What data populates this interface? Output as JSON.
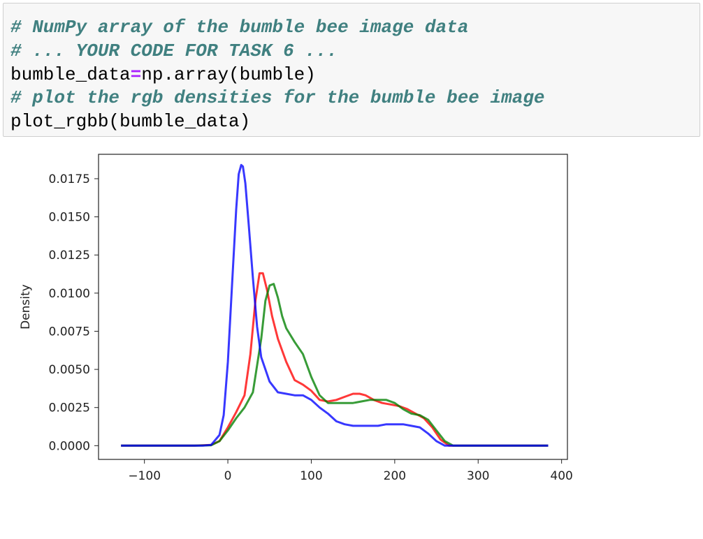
{
  "code_cell": {
    "line1": "# NumPy array of the bumble bee image data",
    "line2": "# ... YOUR CODE FOR TASK 6 ...",
    "line3": {
      "var": "bumble_data",
      "op": "=",
      "call": "np.array(bumble)"
    },
    "line4": "# plot the rgb densities for the bumble bee image",
    "line5": "plot_rgbb(bumble_data)"
  },
  "chart_data": {
    "type": "line",
    "ylabel": "Density",
    "xlabel": "",
    "title": "",
    "xlim": [
      -155,
      407
    ],
    "ylim": [
      -0.0009,
      0.0191
    ],
    "x_ticks": [
      -100,
      0,
      100,
      200,
      300,
      400
    ],
    "x_tick_labels": [
      "−100",
      "0",
      "100",
      "200",
      "300",
      "400"
    ],
    "y_ticks": [
      0.0,
      0.0025,
      0.005,
      0.0075,
      0.01,
      0.0125,
      0.015,
      0.0175
    ],
    "y_tick_labels": [
      "0.0000",
      "0.0025",
      "0.0050",
      "0.0075",
      "0.0100",
      "0.0125",
      "0.0150",
      "0.0175"
    ],
    "grid": false,
    "series": [
      {
        "color": "#ff0000",
        "x": [
          -128,
          -40,
          -20,
          -10,
          0,
          10,
          20,
          27,
          33,
          38,
          42,
          47,
          53,
          60,
          70,
          80,
          90,
          100,
          110,
          120,
          130,
          140,
          150,
          158,
          165,
          175,
          185,
          195,
          205,
          215,
          225,
          235,
          245,
          255,
          265,
          275,
          300,
          350,
          384
        ],
        "y": [
          0.0,
          0.0,
          5e-05,
          0.0003,
          0.0012,
          0.0022,
          0.0033,
          0.006,
          0.0095,
          0.0113,
          0.0113,
          0.0102,
          0.0085,
          0.007,
          0.0055,
          0.0043,
          0.004,
          0.0036,
          0.003,
          0.0029,
          0.003,
          0.0032,
          0.0034,
          0.0034,
          0.0033,
          0.003,
          0.0028,
          0.0027,
          0.0026,
          0.0024,
          0.0021,
          0.0018,
          0.0012,
          0.0004,
          0.0,
          0.0,
          0.0,
          0.0,
          0.0
        ]
      },
      {
        "color": "#008000",
        "x": [
          -128,
          -40,
          -20,
          -10,
          0,
          10,
          20,
          30,
          40,
          45,
          50,
          55,
          60,
          65,
          70,
          80,
          90,
          100,
          110,
          120,
          130,
          140,
          150,
          160,
          170,
          180,
          190,
          200,
          210,
          220,
          230,
          240,
          250,
          260,
          270,
          300,
          350,
          384
        ],
        "y": [
          0.0,
          0.0,
          3e-05,
          0.0003,
          0.001,
          0.0018,
          0.0025,
          0.0035,
          0.007,
          0.0095,
          0.0105,
          0.0106,
          0.0097,
          0.0085,
          0.0077,
          0.0068,
          0.006,
          0.0045,
          0.0033,
          0.0028,
          0.0028,
          0.0028,
          0.0028,
          0.0029,
          0.003,
          0.003,
          0.003,
          0.0028,
          0.0024,
          0.0021,
          0.002,
          0.0017,
          0.001,
          0.0003,
          0.0,
          0.0,
          0.0,
          0.0
        ]
      },
      {
        "color": "#0000ff",
        "x": [
          -128,
          -30,
          -20,
          -10,
          -5,
          0,
          5,
          10,
          13,
          16,
          18,
          21,
          25,
          30,
          35,
          40,
          50,
          60,
          70,
          80,
          90,
          100,
          110,
          120,
          130,
          140,
          150,
          160,
          170,
          180,
          190,
          200,
          210,
          220,
          230,
          240,
          250,
          260,
          270,
          300,
          350,
          384
        ],
        "y": [
          0.0,
          0.0,
          5e-05,
          0.0007,
          0.002,
          0.0055,
          0.0105,
          0.0155,
          0.0178,
          0.0184,
          0.0183,
          0.0172,
          0.0145,
          0.011,
          0.0078,
          0.0058,
          0.0042,
          0.0035,
          0.0034,
          0.0033,
          0.0033,
          0.003,
          0.0025,
          0.0021,
          0.0016,
          0.0014,
          0.0013,
          0.0013,
          0.0013,
          0.0013,
          0.0014,
          0.0014,
          0.0014,
          0.0013,
          0.0012,
          0.0008,
          0.0003,
          0.0,
          0.0,
          0.0,
          0.0,
          0.0
        ]
      }
    ]
  }
}
